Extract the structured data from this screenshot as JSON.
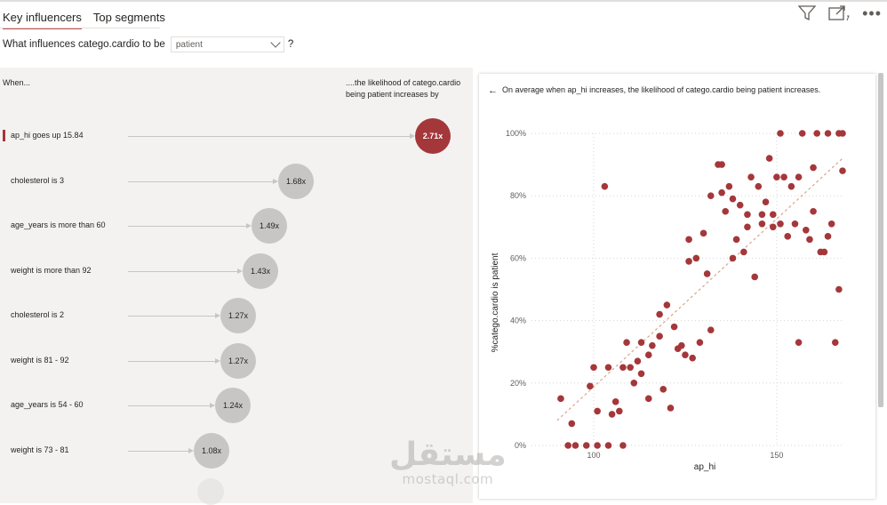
{
  "tabs": [
    {
      "label": "Key influencers",
      "active": true
    },
    {
      "label": "Top segments",
      "active": false
    }
  ],
  "question": {
    "prefix": "What influences catego.cardio to be",
    "selected_value": "patient",
    "suffix": "?"
  },
  "toolbar": {
    "filter_icon": "filter-icon",
    "focus_icon": "focus-mode-icon",
    "more_icon": "more-options-icon",
    "more_label": "•••"
  },
  "left": {
    "when_header": "When...",
    "likely_header": "....the likelihood of catego.cardio being patient increases by",
    "rows": [
      {
        "label": "ap_hi goes up 15.84",
        "value": "2.71x",
        "selected": true
      },
      {
        "label": "cholesterol is 3",
        "value": "1.68x"
      },
      {
        "label": "age_years is more than 60",
        "value": "1.49x"
      },
      {
        "label": "weight is more than 92",
        "value": "1.43x"
      },
      {
        "label": "cholesterol is 2",
        "value": "1.27x"
      },
      {
        "label": "weight is 81 - 92",
        "value": "1.27x"
      },
      {
        "label": "age_years is 54 - 60",
        "value": "1.24x"
      },
      {
        "label": "weight is 73 - 81",
        "value": "1.08x"
      }
    ]
  },
  "detail": {
    "back_icon": "back-arrow-icon",
    "back_glyph": "←",
    "title": "On average when ap_hi increases, the likelihood of catego.cardio being patient increases."
  },
  "chart_data": {
    "type": "scatter",
    "title": "On average when ap_hi increases, the likelihood of catego.cardio being patient increases.",
    "xlabel": "ap_hi",
    "ylabel": "%catego.cardio is patient",
    "xlim": [
      83,
      168
    ],
    "ylim": [
      0,
      100
    ],
    "x_ticks": [
      100,
      150
    ],
    "y_ticks": [
      0,
      20,
      40,
      60,
      80,
      100
    ],
    "y_tick_labels": [
      "0%",
      "20%",
      "40%",
      "60%",
      "80%",
      "100%"
    ],
    "point_color": "#a4373a",
    "trend_color": "#d9a58a",
    "trend_line": [
      [
        90,
        8
      ],
      [
        168,
        92
      ]
    ],
    "points": [
      [
        91,
        15
      ],
      [
        93,
        0
      ],
      [
        94,
        7
      ],
      [
        95,
        0
      ],
      [
        98,
        0
      ],
      [
        99,
        19
      ],
      [
        100,
        25
      ],
      [
        101,
        0
      ],
      [
        101,
        11
      ],
      [
        103,
        83
      ],
      [
        104,
        25
      ],
      [
        104,
        0
      ],
      [
        105,
        10
      ],
      [
        106,
        14
      ],
      [
        107,
        11
      ],
      [
        108,
        0
      ],
      [
        108,
        25
      ],
      [
        109,
        33
      ],
      [
        110,
        25
      ],
      [
        111,
        20
      ],
      [
        112,
        27
      ],
      [
        113,
        23
      ],
      [
        113,
        33
      ],
      [
        115,
        15
      ],
      [
        115,
        29
      ],
      [
        116,
        32
      ],
      [
        118,
        35
      ],
      [
        118,
        42
      ],
      [
        119,
        18
      ],
      [
        120,
        45
      ],
      [
        121,
        12
      ],
      [
        122,
        38
      ],
      [
        123,
        31
      ],
      [
        124,
        32
      ],
      [
        125,
        29
      ],
      [
        126,
        59
      ],
      [
        126,
        66
      ],
      [
        127,
        28
      ],
      [
        128,
        60
      ],
      [
        129,
        33
      ],
      [
        130,
        68
      ],
      [
        131,
        55
      ],
      [
        132,
        37
      ],
      [
        132,
        80
      ],
      [
        134,
        90
      ],
      [
        135,
        81
      ],
      [
        135,
        90
      ],
      [
        136,
        75
      ],
      [
        137,
        83
      ],
      [
        138,
        60
      ],
      [
        138,
        79
      ],
      [
        139,
        66
      ],
      [
        140,
        77
      ],
      [
        141,
        62
      ],
      [
        142,
        74
      ],
      [
        142,
        70
      ],
      [
        143,
        86
      ],
      [
        144,
        54
      ],
      [
        145,
        83
      ],
      [
        146,
        74
      ],
      [
        146,
        71
      ],
      [
        147,
        78
      ],
      [
        148,
        92
      ],
      [
        149,
        70
      ],
      [
        149,
        74
      ],
      [
        150,
        86
      ],
      [
        151,
        71
      ],
      [
        151,
        100
      ],
      [
        152,
        86
      ],
      [
        153,
        67
      ],
      [
        154,
        83
      ],
      [
        155,
        71
      ],
      [
        156,
        33
      ],
      [
        156,
        86
      ],
      [
        157,
        100
      ],
      [
        158,
        69
      ],
      [
        159,
        66
      ],
      [
        160,
        75
      ],
      [
        160,
        89
      ],
      [
        161,
        100
      ],
      [
        162,
        62
      ],
      [
        163,
        62
      ],
      [
        164,
        67
      ],
      [
        164,
        100
      ],
      [
        165,
        71
      ],
      [
        166,
        33
      ],
      [
        167,
        50
      ],
      [
        167,
        100
      ],
      [
        168,
        100
      ],
      [
        168,
        88
      ]
    ]
  }
}
